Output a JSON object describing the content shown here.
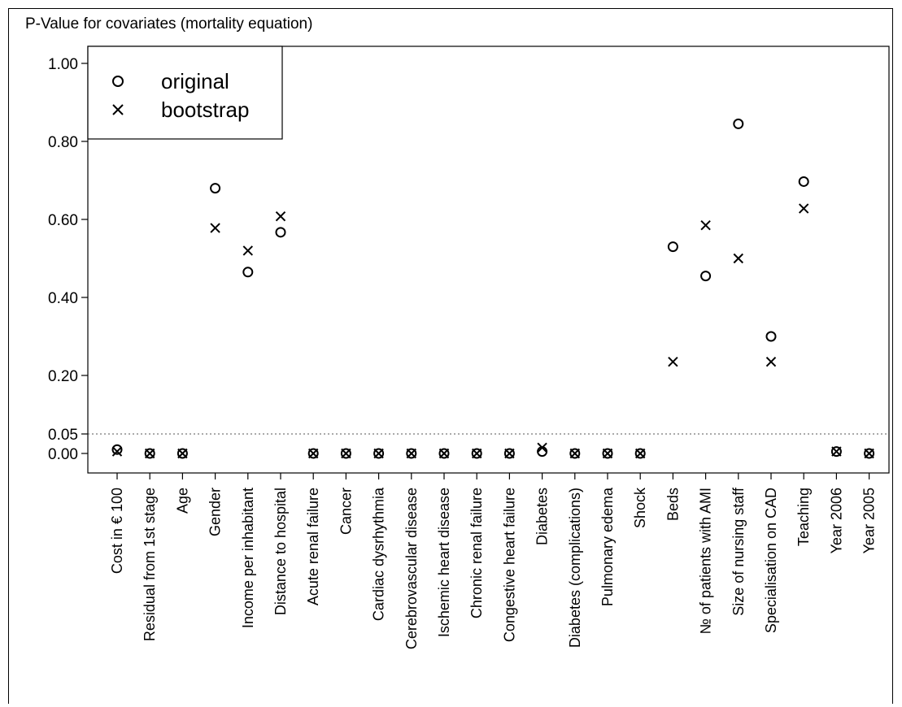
{
  "chart_data": {
    "type": "scatter",
    "title": "P-Value for covariates (mortality equation)",
    "xlabel": "",
    "ylabel": "",
    "ylim": [
      0,
      1
    ],
    "y_ticks": [
      0.0,
      0.05,
      0.2,
      0.4,
      0.6,
      0.8,
      1.0
    ],
    "y_tick_labels": [
      "0.00",
      "0.05",
      "0.20",
      "0.40",
      "0.60",
      "0.80",
      "1.00"
    ],
    "reference_line": 0.05,
    "legend": {
      "placement": "top-left",
      "entries": [
        "original",
        "bootstrap"
      ]
    },
    "categories": [
      "Cost in € 100",
      "Residual from 1st stage",
      "Age",
      "Gender",
      "Income per inhabitant",
      "Distance to hospital",
      "Acute renal failure",
      "Cancer",
      "Cardiac dysrhythmia",
      "Cerebrovascular disease",
      "Ischemic heart disease",
      "Chronic renal failure",
      "Congestive heart failure",
      "Diabetes",
      "Diabetes (complications)",
      "Pulmonary edema",
      "Shock",
      "Beds",
      "№ of patients with AMI",
      "Size of nursing staff",
      "Specialisation on CAD",
      "Teaching",
      "Year 2006",
      "Year 2005"
    ],
    "series": [
      {
        "name": "original",
        "marker": "circle",
        "values": [
          0.01,
          0.0,
          0.0,
          0.68,
          0.465,
          0.567,
          0.0,
          0.0,
          0.0,
          0.0,
          0.0,
          0.0,
          0.0,
          0.005,
          0.0,
          0.0,
          0.0,
          0.53,
          0.455,
          0.845,
          0.3,
          0.697,
          0.005,
          0.0
        ]
      },
      {
        "name": "bootstrap",
        "marker": "cross",
        "values": [
          0.005,
          0.0,
          0.0,
          0.578,
          0.52,
          0.608,
          0.0,
          0.0,
          0.0,
          0.0,
          0.0,
          0.0,
          0.0,
          0.015,
          0.0,
          0.0,
          0.0,
          0.235,
          0.585,
          0.5,
          0.235,
          0.628,
          0.005,
          0.0
        ]
      }
    ]
  }
}
